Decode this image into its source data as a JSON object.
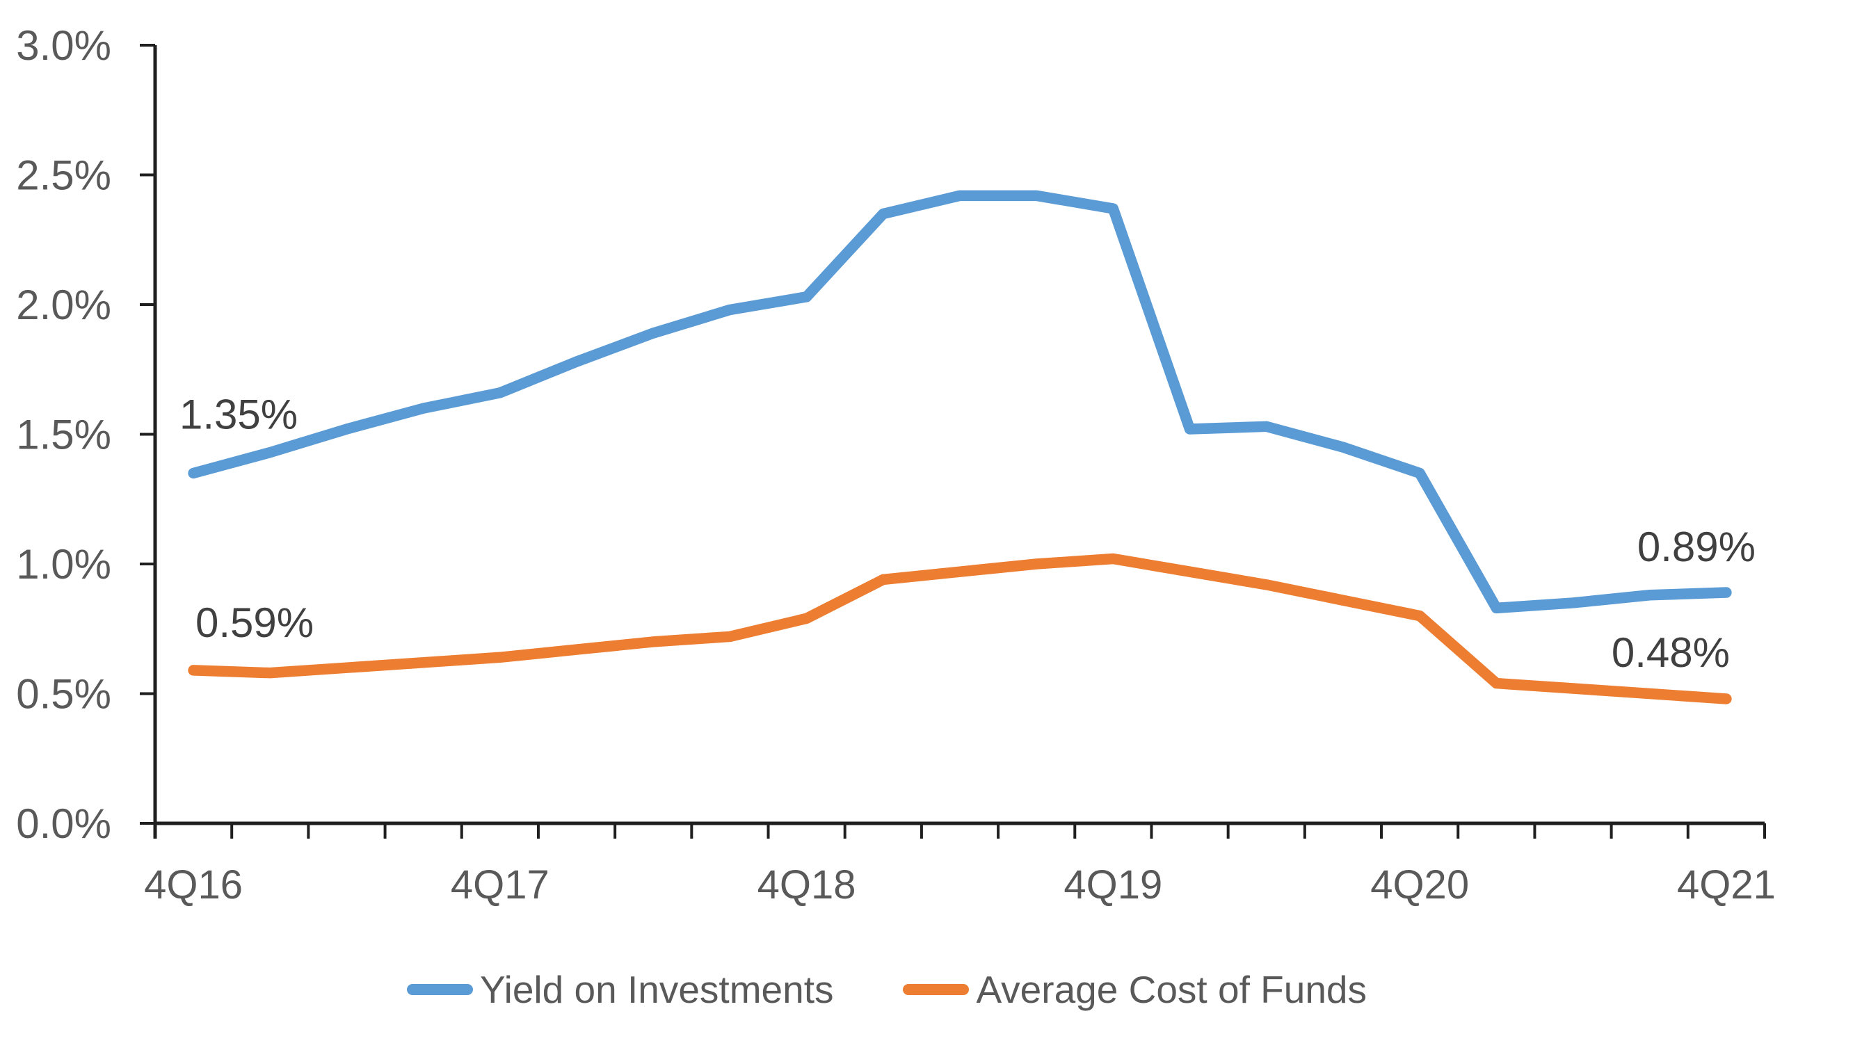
{
  "chart_data": {
    "type": "line",
    "categories": [
      "4Q16",
      "1Q17",
      "2Q17",
      "3Q17",
      "4Q17",
      "1Q18",
      "2Q18",
      "3Q18",
      "4Q18",
      "1Q19",
      "2Q19",
      "3Q19",
      "4Q19",
      "1Q20",
      "2Q20",
      "3Q20",
      "4Q20",
      "1Q21",
      "2Q21",
      "3Q21",
      "4Q21"
    ],
    "x_label_interval": 4,
    "x_tick_labels_shown": [
      "4Q16",
      "4Q17",
      "4Q18",
      "4Q19",
      "4Q20",
      "4Q21"
    ],
    "series": [
      {
        "name": "Yield on Investments",
        "color": "#5B9BD5",
        "values": [
          1.35,
          1.43,
          1.52,
          1.6,
          1.66,
          1.78,
          1.89,
          1.98,
          2.03,
          2.35,
          2.42,
          2.42,
          2.37,
          1.52,
          1.53,
          1.45,
          1.35,
          0.83,
          0.85,
          0.88,
          0.89
        ]
      },
      {
        "name": "Average Cost of Funds",
        "color": "#ED7D31",
        "values": [
          0.59,
          0.58,
          0.6,
          0.62,
          0.64,
          0.67,
          0.7,
          0.72,
          0.79,
          0.94,
          0.97,
          1.0,
          1.02,
          0.97,
          0.92,
          0.86,
          0.8,
          0.54,
          0.52,
          0.5,
          0.48
        ]
      }
    ],
    "y_axis": {
      "min": 0,
      "max": 3,
      "step": 0.5,
      "tick_labels": [
        "0.0%",
        "0.5%",
        "1.0%",
        "1.5%",
        "2.0%",
        "2.5%",
        "3.0%"
      ]
    },
    "annotations": [
      {
        "text": "1.35%",
        "series": 0,
        "point": 0
      },
      {
        "text": "0.59%",
        "series": 1,
        "point": 0
      },
      {
        "text": "0.89%",
        "series": 0,
        "point": 20
      },
      {
        "text": "0.48%",
        "series": 1,
        "point": 20
      }
    ],
    "legend_position": "bottom",
    "grid": false,
    "colors": {
      "axis": "#1f1f1f",
      "tick_label": "#595959",
      "annotation": "#404040",
      "background": "#FFFFFF"
    }
  }
}
